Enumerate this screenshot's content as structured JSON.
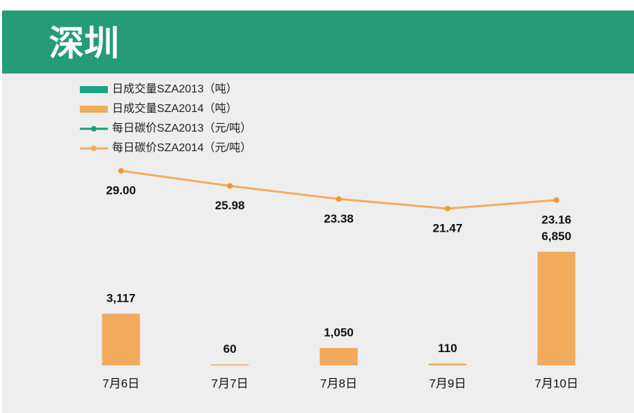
{
  "chart_data": {
    "type": "combo",
    "title": "深圳",
    "categories": [
      "7月6日",
      "7月7日",
      "7月8日",
      "7月9日",
      "7月10日"
    ],
    "series": [
      {
        "name": "日成交量SZA2013（吨）",
        "type": "bar",
        "color": "#17a683",
        "values": [
          null,
          null,
          null,
          null,
          null
        ]
      },
      {
        "name": "日成交量SZA2014（吨）",
        "type": "bar",
        "color": "#f2aa5c",
        "values": [
          3117,
          60,
          1050,
          110,
          6850
        ],
        "value_labels": [
          "3,117",
          "60",
          "1,050",
          "110",
          "6,850"
        ]
      },
      {
        "name": "每日碳价SZA2013（元/吨）",
        "type": "line",
        "axis": "y2",
        "color": "#1e9b78",
        "values": [
          null,
          null,
          null,
          null,
          null
        ]
      },
      {
        "name": "每日碳价SZA2014（元/吨）",
        "type": "line",
        "axis": "y2",
        "color": "#f4ab5e",
        "values": [
          29.0,
          25.98,
          23.38,
          21.47,
          23.16
        ],
        "value_labels": [
          "29.00",
          "25.98",
          "23.38",
          "21.47",
          "23.16"
        ]
      }
    ],
    "ylim": [
      0,
      17600
    ],
    "y2lim": [
      -9.8,
      48.4
    ],
    "grid": false,
    "legend": "top-left"
  }
}
